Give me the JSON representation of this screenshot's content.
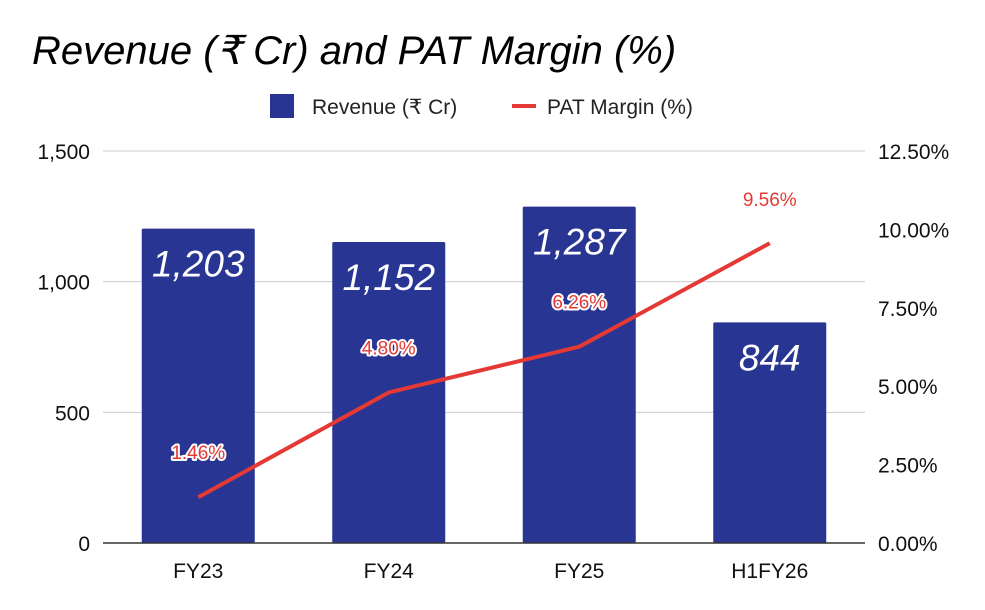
{
  "chart_data": {
    "type": "bar",
    "title": "Revenue (₹ Cr) and PAT Margin (%)",
    "categories": [
      "FY23",
      "FY24",
      "FY25",
      "H1FY26"
    ],
    "series": [
      {
        "name": "Revenue (₹ Cr)",
        "type": "bar",
        "axis": "left",
        "color": "#283593",
        "values": [
          1203,
          1152,
          1287,
          844
        ],
        "labels": [
          "1,203",
          "1,152",
          "1,287",
          "844"
        ]
      },
      {
        "name": "PAT Margin (%)",
        "type": "line",
        "axis": "right",
        "color": "#e53935",
        "values": [
          1.46,
          4.8,
          6.26,
          9.56
        ],
        "labels": [
          "1.46%",
          "4.80%",
          "6.26%",
          "9.56%"
        ]
      }
    ],
    "y_left": {
      "min": 0,
      "max": 1500,
      "ticks": [
        0,
        500,
        1000,
        1500
      ],
      "tick_labels": [
        "0",
        "500",
        "1,000",
        "1,500"
      ]
    },
    "y_right": {
      "min": 0,
      "max": 12.5,
      "ticks": [
        0,
        2.5,
        5,
        7.5,
        10,
        12.5
      ],
      "tick_labels": [
        "0.00%",
        "2.50%",
        "5.00%",
        "7.50%",
        "10.00%",
        "12.50%"
      ]
    },
    "legend_position": "top-center",
    "grid": true
  }
}
